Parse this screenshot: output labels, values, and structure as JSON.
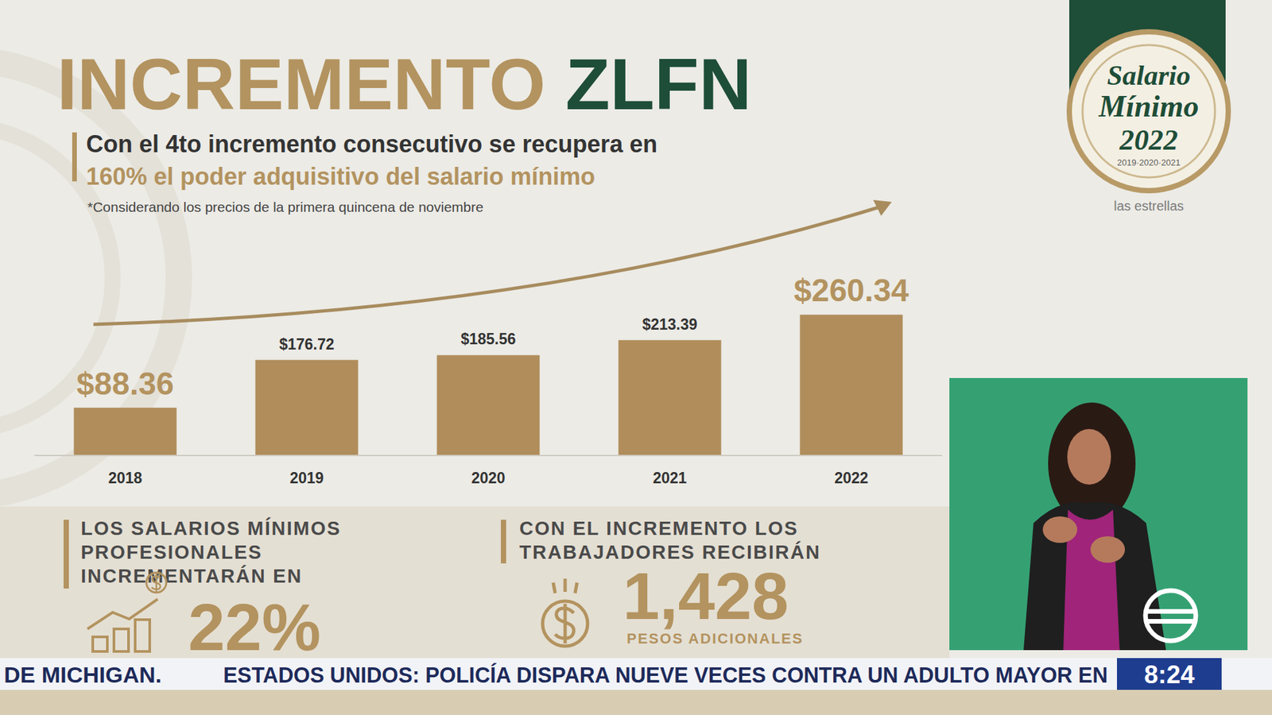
{
  "chart_data": {
    "type": "bar",
    "title": "INCREMENTO ZLFN",
    "subtitle": [
      "Con el 4to incremento consecutivo se recupera en",
      "160% el poder adquisitivo del salario mínimo"
    ],
    "footnote": "*Considerando los precios de la primera quincena de noviembre",
    "categories": [
      "2018",
      "2019",
      "2020",
      "2021",
      "2022"
    ],
    "values": [
      88.36,
      176.72,
      185.56,
      213.39,
      260.34
    ],
    "value_labels": [
      "$88.36",
      "$176.72",
      "$185.56",
      "$213.39",
      "$260.34"
    ],
    "color": "#b08d5b",
    "ylim": [
      0,
      300
    ],
    "data_labels": true,
    "tick_labels": "x"
  },
  "panels": [
    {
      "heading": [
        "LOS SALARIOS MÍNIMOS",
        "PROFESIONALES",
        "INCREMENTARÁN EN"
      ],
      "figure": "22%"
    },
    {
      "heading": [
        "CON EL INCREMENTO LOS",
        "TRABAJADORES RECIBIRÁN"
      ],
      "figure": "1,428",
      "note": "PESOS ADICIONALES"
    }
  ],
  "badge": {
    "lines": [
      "Salario",
      "Mínimo",
      "2022"
    ],
    "years": "2019·2020·2021"
  },
  "channel": {
    "watermark": "las estrellas"
  },
  "ticker": {
    "items": [
      "DE MICHIGAN.",
      "ESTADOS UNIDOS: POLICÍA DISPARA NUEVE VECES CONTRA UN ADULTO MAYOR EN"
    ],
    "time": "8:24"
  }
}
